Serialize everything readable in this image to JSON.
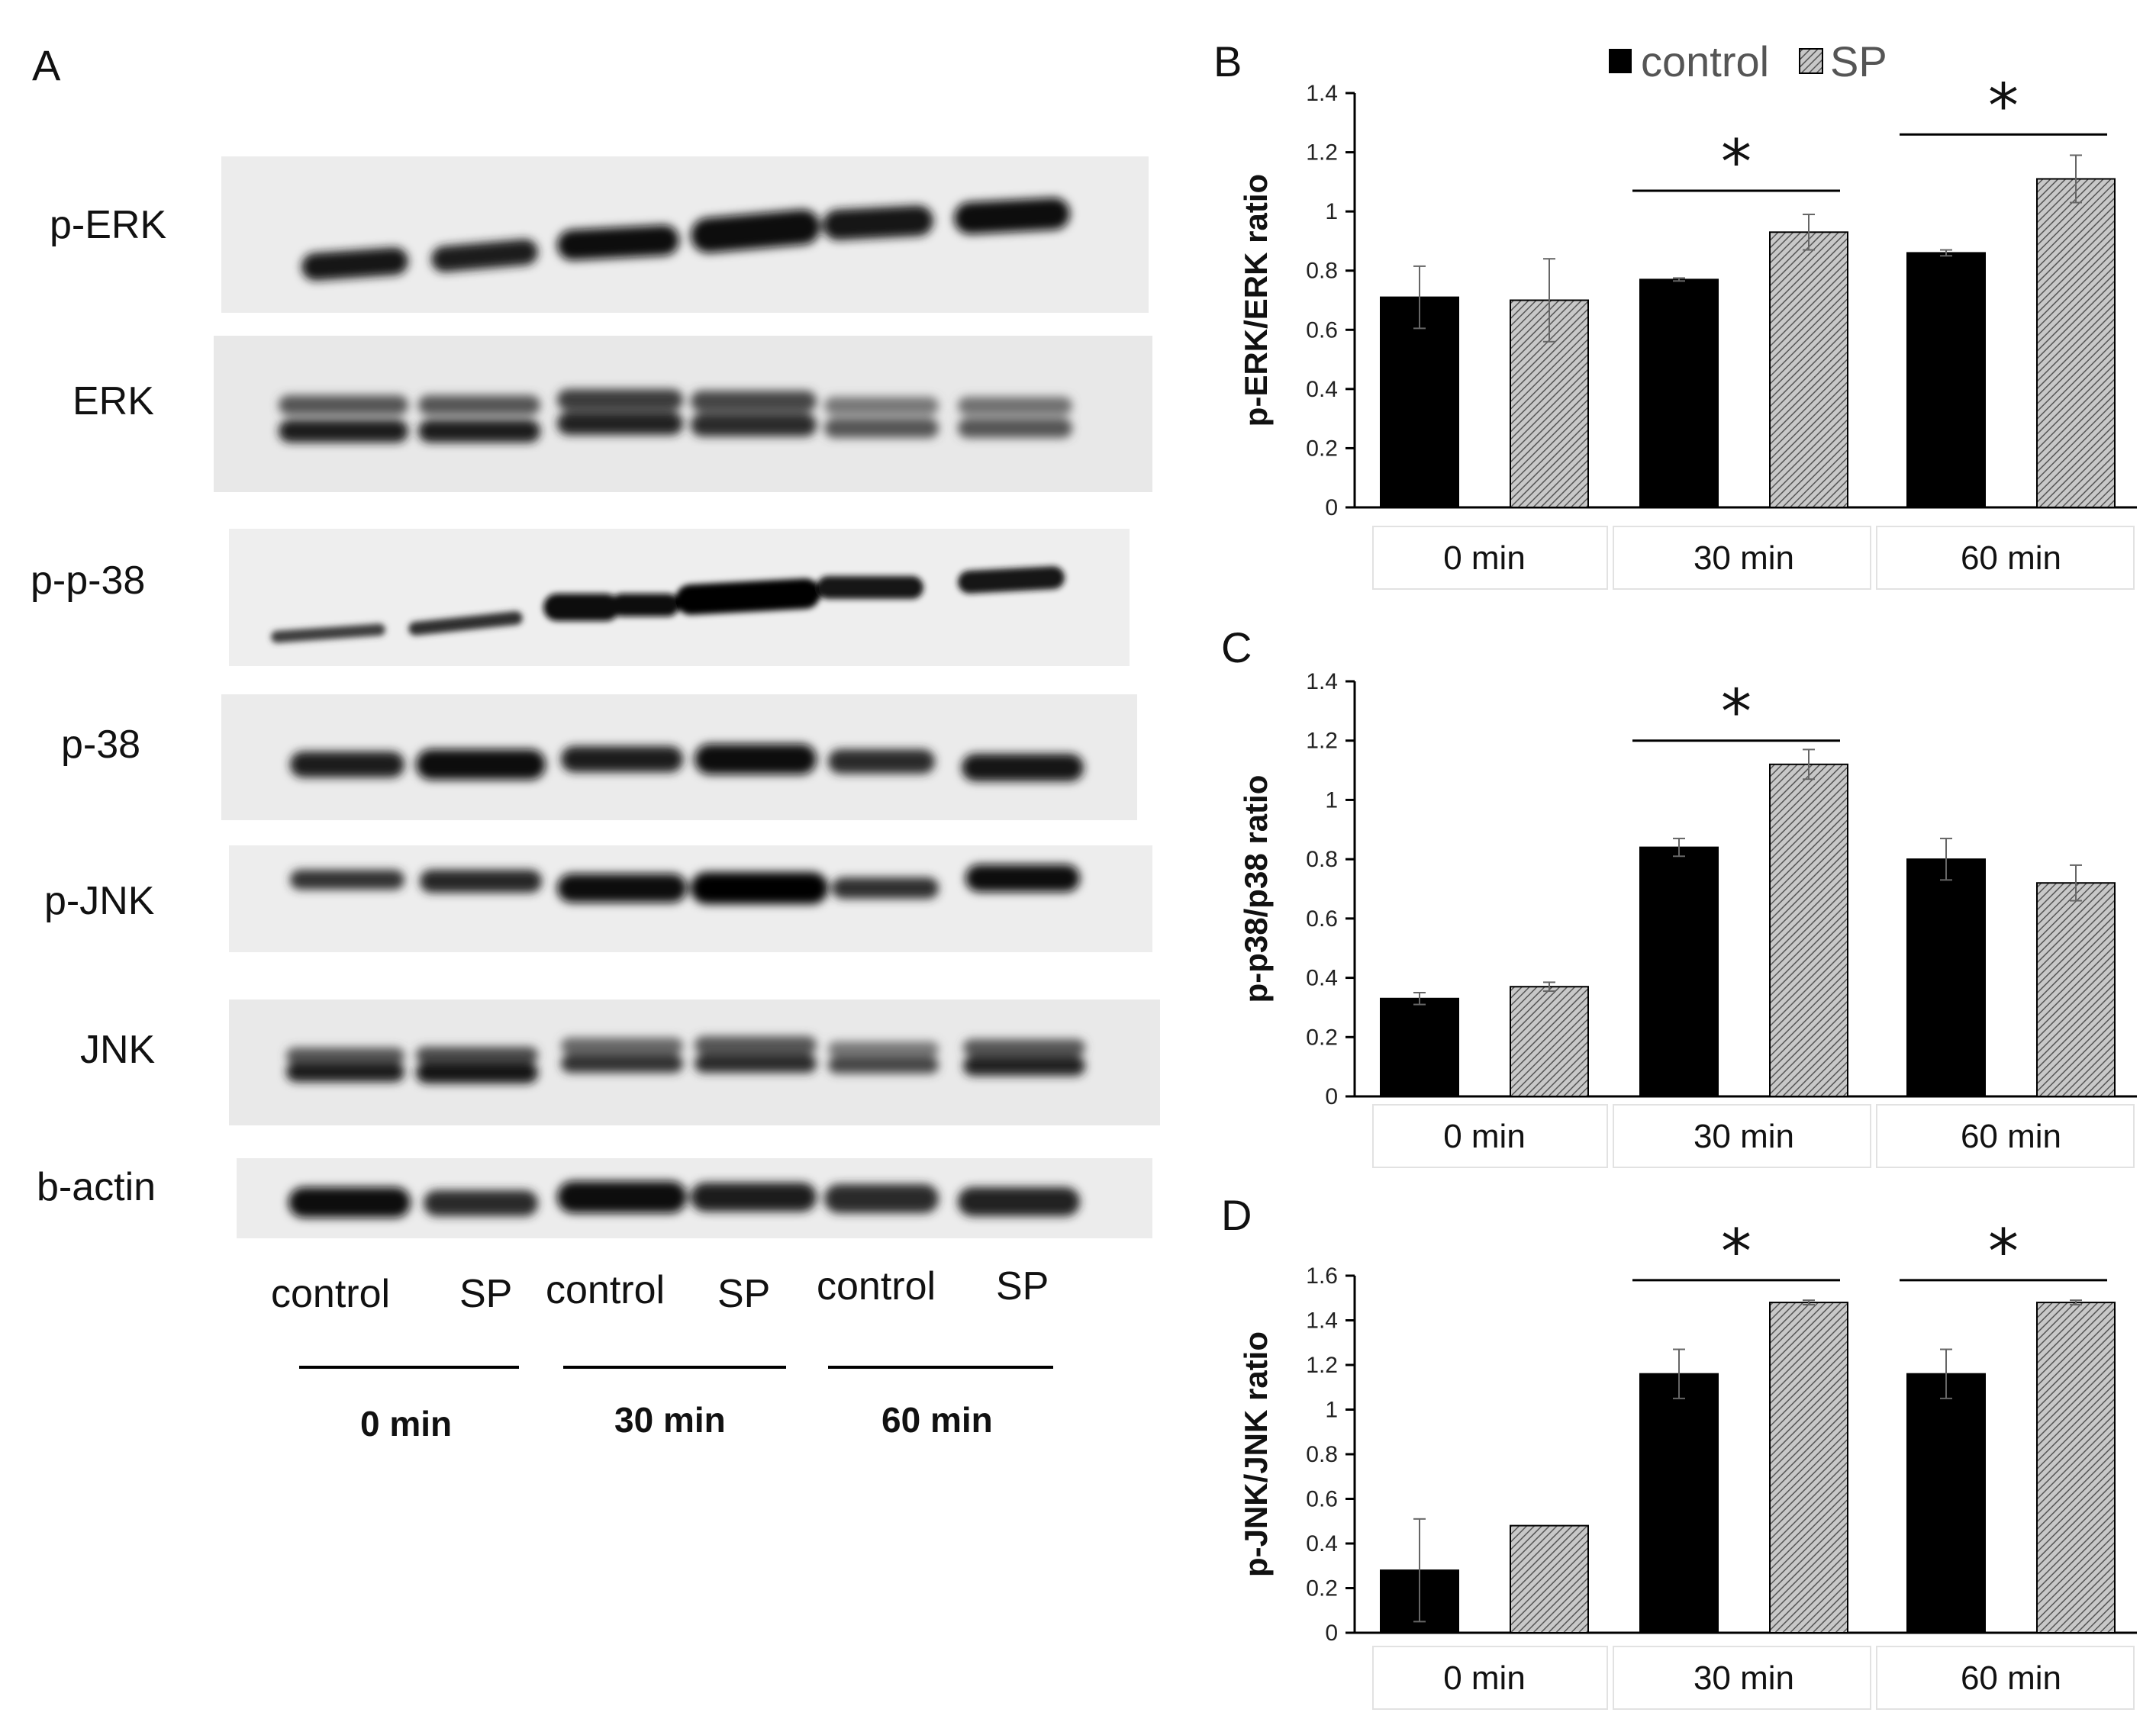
{
  "panels": {
    "a": "A",
    "b": "B",
    "c": "C",
    "d": "D"
  },
  "legend": {
    "control": "control",
    "sp": "SP"
  },
  "blot": {
    "proteins": [
      "p-ERK",
      "ERK",
      "p-p-38",
      "p-38",
      "p-JNK",
      "JNK",
      "b-actin"
    ],
    "lanes": [
      "control",
      "SP",
      "control",
      "SP",
      "control",
      "SP"
    ],
    "times": [
      "0 min",
      "30 min",
      "60 min"
    ]
  },
  "colors": {
    "control": "#000000",
    "sp_hatch": "#a8a8a8"
  },
  "chart_data": [
    {
      "type": "bar",
      "panel": "B",
      "ylabel": "p-ERK/ERK ratio",
      "categories": [
        "0 min",
        "30 min",
        "60 min"
      ],
      "ylim": [
        0,
        1.4
      ],
      "yticks": [
        "0",
        "0.2",
        "0.4",
        "0.6",
        "0.8",
        "1",
        "1.2",
        "1.4"
      ],
      "series": [
        {
          "name": "control",
          "values": [
            0.71,
            0.77,
            0.86
          ],
          "errors": [
            0.105,
            0.005,
            0.01
          ]
        },
        {
          "name": "SP",
          "values": [
            0.7,
            0.93,
            1.11
          ],
          "errors": [
            0.14,
            0.06,
            0.08
          ]
        }
      ],
      "significance": [
        {
          "category": 1,
          "y": 1.07,
          "label": "*"
        },
        {
          "category": 2,
          "y": 1.26,
          "label": "*"
        }
      ]
    },
    {
      "type": "bar",
      "panel": "C",
      "ylabel": "p-p38/p38 ratio",
      "categories": [
        "0 min",
        "30 min",
        "60 min"
      ],
      "ylim": [
        0,
        1.4
      ],
      "yticks": [
        "0",
        "0.2",
        "0.4",
        "0.6",
        "0.8",
        "1",
        "1.2",
        "1.4"
      ],
      "series": [
        {
          "name": "control",
          "values": [
            0.33,
            0.84,
            0.8
          ],
          "errors": [
            0.02,
            0.03,
            0.07
          ]
        },
        {
          "name": "SP",
          "values": [
            0.37,
            1.12,
            0.72
          ],
          "errors": [
            0.015,
            0.05,
            0.06
          ]
        }
      ],
      "significance": [
        {
          "category": 1,
          "y": 1.2,
          "label": "*"
        }
      ]
    },
    {
      "type": "bar",
      "panel": "D",
      "ylabel": "p-JNK/JNK ratio",
      "categories": [
        "0 min",
        "30 min",
        "60 min"
      ],
      "ylim": [
        0,
        1.6
      ],
      "yticks": [
        "0",
        "0.2",
        "0.4",
        "0.6",
        "0.8",
        "1",
        "1.2",
        "1.4",
        "1.6"
      ],
      "series": [
        {
          "name": "control",
          "values": [
            0.28,
            1.16,
            1.16
          ],
          "errors": [
            0.23,
            0.11,
            0.11
          ]
        },
        {
          "name": "SP",
          "values": [
            0.48,
            1.48,
            1.48
          ],
          "errors": [
            0,
            0.01,
            0.01
          ]
        }
      ],
      "significance": [
        {
          "category": 1,
          "y": 1.58,
          "label": "*"
        },
        {
          "category": 2,
          "y": 1.58,
          "label": "*"
        }
      ]
    }
  ]
}
